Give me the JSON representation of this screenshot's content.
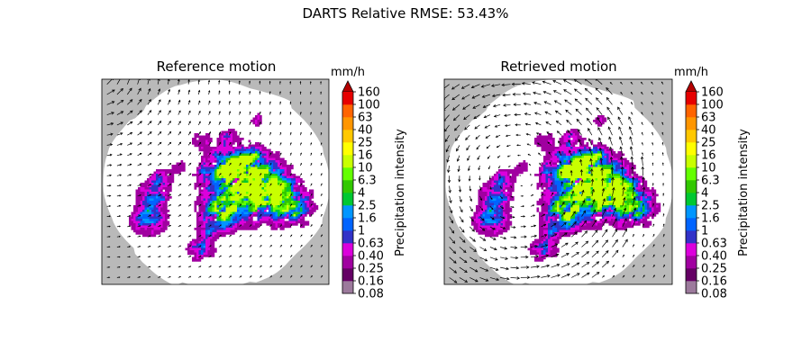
{
  "figure": {
    "suptitle": "DARTS Relative RMSE: 53.43%"
  },
  "chart_data": [
    {
      "type": "heatmap",
      "title": "Reference motion",
      "description_layers": [
        "precipitation field",
        "motion vector field"
      ],
      "background_color": "#b9b9b9",
      "axes_ticks": "none",
      "colorbar": {
        "label": "Precipitation intensity",
        "unit": "mm/h",
        "extend": "max",
        "ticks": [
          "0.08",
          "0.16",
          "0.25",
          "0.40",
          "0.63",
          "1",
          "1.6",
          "2.5",
          "4",
          "6.3",
          "10",
          "16",
          "25",
          "40",
          "63",
          "100",
          "160"
        ],
        "colors": [
          "#9c7a9c",
          "#640064",
          "#a000a0",
          "#dc00dc",
          "#3232c8",
          "#0064ff",
          "#0096ff",
          "#00c832",
          "#32c800",
          "#64ff00",
          "#c8ff00",
          "#ffff00",
          "#ffc800",
          "#ff9600",
          "#ff6400",
          "#e60000",
          "#b40000"
        ]
      },
      "motion_field": "rotation about the upper-left corner, strongest near the top-left"
    },
    {
      "type": "heatmap",
      "title": "Retrieved motion",
      "description_layers": [
        "precipitation field",
        "motion vector field"
      ],
      "background_color": "#b9b9b9",
      "axes_ticks": "none",
      "colorbar": {
        "label": "Precipitation intensity",
        "unit": "mm/h",
        "extend": "max",
        "ticks": [
          "0.08",
          "0.16",
          "0.25",
          "0.40",
          "0.63",
          "1",
          "1.6",
          "2.5",
          "4",
          "6.3",
          "10",
          "16",
          "25",
          "40",
          "63",
          "100",
          "160"
        ],
        "colors": [
          "#9c7a9c",
          "#640064",
          "#a000a0",
          "#dc00dc",
          "#3232c8",
          "#0064ff",
          "#0096ff",
          "#00c832",
          "#32c800",
          "#64ff00",
          "#c8ff00",
          "#ffff00",
          "#ffc800",
          "#ff9600",
          "#ff6400",
          "#e60000",
          "#b40000"
        ]
      },
      "motion_field": "rotation about a point left of the domain centre"
    }
  ]
}
